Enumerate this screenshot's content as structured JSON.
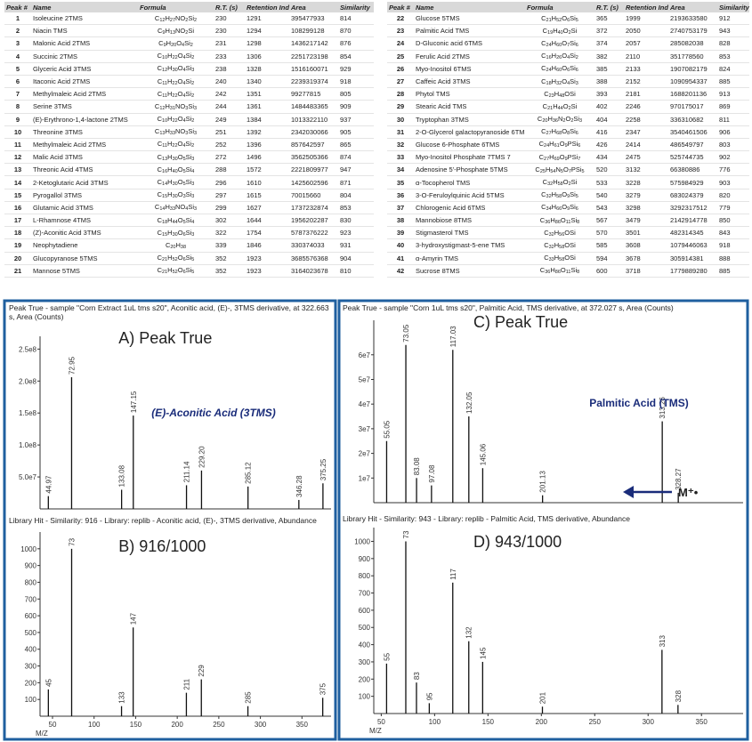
{
  "tables": [
    {
      "columns": [
        "Peak #",
        "Name",
        "Formula",
        "R.T. (s)",
        "Retention Index",
        "Area",
        "Similarity"
      ],
      "rows": [
        [
          1,
          "Isoleucine 2TMS",
          "C12H27NO2Si2",
          230,
          1291,
          395477933,
          814
        ],
        [
          2,
          "Niacin TMS",
          "C9H13NO2Si",
          230,
          1294,
          108299128,
          870
        ],
        [
          3,
          "Malonic Acid 2TMS",
          "C9H20O4Si2",
          231,
          1298,
          1436217142,
          876
        ],
        [
          4,
          "Succinic 2TMS",
          "C10H22O4Si2",
          233,
          1306,
          2251723198,
          854
        ],
        [
          5,
          "Glyceric Acid 3TMS",
          "C12H30O4Si3",
          238,
          1328,
          1516160071,
          929
        ],
        [
          6,
          "Itaconic Acid 2TMS",
          "C11H22O4Si2",
          240,
          1340,
          2239319374,
          918
        ],
        [
          7,
          "Methylmaleic Acid 2TMS",
          "C11H22O4Si2",
          242,
          1351,
          99277815,
          805
        ],
        [
          8,
          "Serine 3TMS",
          "C12H31NO3Si3",
          244,
          1361,
          1484483365,
          909
        ],
        [
          9,
          "(E)-Erythrono-1,4-lactone 2TMS",
          "C10H22O4Si2",
          249,
          1384,
          1013322110,
          937
        ],
        [
          10,
          "Threonine 3TMS",
          "C13H33NO3Si3",
          251,
          1392,
          2342030066,
          905
        ],
        [
          11,
          "Methylmaleic Acid 2TMS",
          "C11H22O4Si2",
          252,
          1396,
          857642597,
          865
        ],
        [
          12,
          "Malic Acid 3TMS",
          "C13H30O5Si3",
          272,
          1496,
          3562505366,
          874
        ],
        [
          13,
          "Threonic Acid 4TMS",
          "C16H40O5Si4",
          288,
          1572,
          2221809977,
          947
        ],
        [
          14,
          "2-Ketoglutaric Acid 3TMS",
          "C14H30O5Si3",
          296,
          1610,
          1425602596,
          871
        ],
        [
          15,
          "Pyrogallol 3TMS",
          "C15H30O3Si3",
          297,
          1615,
          70015660,
          804
        ],
        [
          16,
          "Glutamic Acid 3TMS",
          "C14H33NO4Si3",
          299,
          1627,
          1737232874,
          853
        ],
        [
          17,
          "L-Rhamnose 4TMS",
          "C18H44O5Si4",
          302,
          1644,
          1956202287,
          830
        ],
        [
          18,
          "(Z)-Aconitic Acid 3TMS",
          "C15H30O6Si3",
          322,
          1754,
          5787376222,
          923
        ],
        [
          19,
          "Neophytadiene",
          "C20H38",
          339,
          1846,
          330374033,
          931
        ],
        [
          20,
          "Glucopyranose 5TMS",
          "C21H52O6Si5",
          352,
          1923,
          3685576368,
          904
        ],
        [
          21,
          "Mannose 5TMS",
          "C21H52O6Si5",
          352,
          1923,
          3164023678,
          810
        ]
      ]
    },
    {
      "columns": [
        "Peak #",
        "Name",
        "Formula",
        "R.T. (s)",
        "Retention Index",
        "Area",
        "Similarity"
      ],
      "rows": [
        [
          22,
          "Glucose 5TMS",
          "C21H52O6Si5",
          365,
          1999,
          2193633580,
          912
        ],
        [
          23,
          "Palmitic Acid TMS",
          "C19H40O2Si",
          372,
          2050,
          2740753179,
          943
        ],
        [
          24,
          "D-Gluconic acid 6TMS",
          "C24H60O7Si6",
          374,
          2057,
          285082038,
          828
        ],
        [
          25,
          "Ferulic Acid 2TMS",
          "C16H26O4Si2",
          382,
          2110,
          351778560,
          853
        ],
        [
          26,
          "Myo-Inositol 6TMS",
          "C24H60O6Si6",
          385,
          2133,
          1907082179,
          824
        ],
        [
          27,
          "Caffeic Acid 3TMS",
          "C18H32O4Si3",
          388,
          2152,
          1090954337,
          885
        ],
        [
          28,
          "Phytol TMS",
          "C23H48OSi",
          393,
          2181,
          1688201136,
          913
        ],
        [
          29,
          "Stearic Acid TMS",
          "C21H44O2Si",
          402,
          2246,
          970175017,
          869
        ],
        [
          30,
          "Tryptophan 3TMS",
          "C20H36N2O2Si3",
          404,
          2258,
          336310682,
          811
        ],
        [
          31,
          "2-O-Glycerol galactopyranoside 6TMS",
          "C27H68O8Si6",
          416,
          2347,
          3540461506,
          906
        ],
        [
          32,
          "Glucose 6-Phosphate 6TMS",
          "C24H61O9PSi6",
          426,
          2414,
          486549797,
          803
        ],
        [
          33,
          "Myo-Inositol Phosphate 7TMS 7",
          "C27H69O9PSi7",
          434,
          2475,
          525744735,
          902
        ],
        [
          34,
          "Adenosine 5'-Phosphate 5TMS",
          "C25H54N5O7PSi5",
          520,
          3132,
          66380886,
          776
        ],
        [
          35,
          "α-Tocopherol TMS",
          "C32H58O2Si",
          533,
          3228,
          575984929,
          903
        ],
        [
          36,
          "3-O-Feruloylquinic Acid 5TMS",
          "C32H58O9Si5",
          540,
          3279,
          683024379,
          820
        ],
        [
          37,
          "Chlorogenic Acid 6TMS",
          "C34H66O9Si6",
          543,
          3298,
          3292317512,
          779
        ],
        [
          38,
          "Mannobiose 8TMS",
          "C36H86O11Si8",
          567,
          3479,
          2142914778,
          850
        ],
        [
          39,
          "Stigmasterol TMS",
          "C32H56OSi",
          570,
          3501,
          482314345,
          843
        ],
        [
          40,
          "3-hydroxystigmast-5-ene TMS",
          "C32H58OSi",
          585,
          3608,
          1079446063,
          918
        ],
        [
          41,
          "α-Amyrin TMS",
          "C33H58OSi",
          594,
          3678,
          305914381,
          888
        ],
        [
          42,
          "Sucrose 8TMS",
          "C36H86O11Si8",
          600,
          3718,
          1779889280,
          885
        ]
      ]
    }
  ],
  "spectra": [
    {
      "title": "Peak True - sample \"Corn Extract 1uL tms s20\", Aconitic acid, (E)-, 3TMS derivative, at 322.663 s, Area (Counts)",
      "label": "A) Peak True",
      "compound": "(E)-Aconitic Acid (3TMS)",
      "xlim": [
        35,
        385
      ],
      "ylim": [
        0,
        270000000
      ],
      "yticks": [
        {
          "value": 50000000,
          "label": "5.0e7"
        },
        {
          "value": 100000000,
          "label": "1.0e8"
        },
        {
          "value": 150000000,
          "label": "1.5e8"
        },
        {
          "value": 200000000,
          "label": "2.0e8"
        },
        {
          "value": 250000000,
          "label": "2.5e8"
        }
      ],
      "x": [
        44.97,
        72.95,
        133.08,
        147.15,
        211.14,
        229.2,
        285.12,
        346.28,
        375.25
      ],
      "x_labels": [
        "44.97",
        "72.95",
        "133.08",
        "147.15",
        "211.14",
        "229.20",
        "285.12",
        "346.28",
        "375.25"
      ],
      "values": [
        20000000,
        206000000,
        30000000,
        146000000,
        37000000,
        60000000,
        35000000,
        14000000,
        40000000
      ]
    },
    {
      "title": "Library Hit - Similarity: 916 - Library: replib - Aconitic acid, (E)-, 3TMS derivative, Abundance",
      "label": "B) 916/1000",
      "x_axis_label": "M/Z",
      "xlim": [
        35,
        385
      ],
      "ylim": [
        0,
        1100
      ],
      "yticks": [
        100,
        200,
        300,
        400,
        500,
        600,
        700,
        800,
        900,
        1000
      ],
      "xticks": [
        50,
        100,
        150,
        200,
        250,
        300,
        350
      ],
      "x": [
        45,
        73,
        133,
        147,
        211,
        229,
        285,
        375
      ],
      "x_labels": [
        "45",
        "73",
        "133",
        "147",
        "211",
        "229",
        "285",
        "375"
      ],
      "values": [
        160,
        1000,
        60,
        530,
        140,
        220,
        60,
        110
      ]
    },
    {
      "title": "Peak True - sample \"Corn 1uL tms s20\", Palmitic Acid, TMS derivative, at 372.027 s, Area (Counts)",
      "label": "C) Peak True",
      "compound": "Palmitic Acid (TMS)",
      "annotation": "M⁺•",
      "xlim": [
        43,
        389
      ],
      "ylim": [
        0,
        74000000
      ],
      "yticks": [
        {
          "value": 10000000,
          "label": "1e7"
        },
        {
          "value": 20000000,
          "label": "2e7"
        },
        {
          "value": 30000000,
          "label": "3e7"
        },
        {
          "value": 40000000,
          "label": "4e7"
        },
        {
          "value": 50000000,
          "label": "5e7"
        },
        {
          "value": 60000000,
          "label": "6e7"
        }
      ],
      "x": [
        55.05,
        73.05,
        83.08,
        97.08,
        117.03,
        132.05,
        145.06,
        201.13,
        313.26,
        328.27
      ],
      "x_labels": [
        "55.05",
        "73.05",
        "83.08",
        "97.08",
        "117.03",
        "132.05",
        "145.06",
        "201.13",
        "313.26",
        "328.27"
      ],
      "values": [
        25000000,
        64000000,
        10000000,
        7000000,
        62000000,
        35000000,
        14000000,
        3000000,
        33000000,
        4000000
      ]
    },
    {
      "title": "Library Hit - Similarity: 943 - Library: replib - Palmitic Acid, TMS derivative, Abundance",
      "label": "D) 943/1000",
      "x_axis_label": "M/Z",
      "xlim": [
        43,
        389
      ],
      "ylim": [
        0,
        1080
      ],
      "yticks": [
        100,
        200,
        300,
        400,
        500,
        600,
        700,
        800,
        900,
        1000
      ],
      "xticks": [
        50,
        100,
        150,
        200,
        250,
        300,
        350
      ],
      "x": [
        55,
        73,
        83,
        95,
        117,
        132,
        145,
        201,
        313,
        328
      ],
      "x_labels": [
        "55",
        "73",
        "83",
        "95",
        "117",
        "132",
        "145",
        "201",
        "313",
        "328"
      ],
      "values": [
        290,
        1000,
        180,
        60,
        760,
        420,
        300,
        40,
        370,
        50
      ]
    }
  ]
}
